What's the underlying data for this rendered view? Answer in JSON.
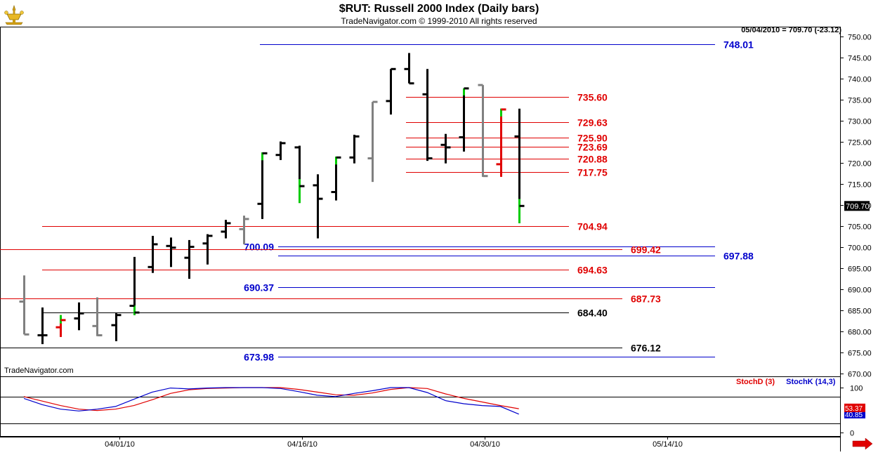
{
  "header": {
    "title": "$RUT:  Russell 2000 Index  (Daily bars)",
    "subtitle": "TradeNavigator.com © 1999-2010 All rights reserved",
    "quote": "05/04/2010 = 709.70 (-23.12)",
    "watermark": "TradeNavigator.com"
  },
  "chart_data": [
    {
      "type": "ohlc",
      "price_axis": {
        "range": [
          668,
          753
        ],
        "ticks": [
          "750.00",
          "745.00",
          "740.00",
          "735.00",
          "730.00",
          "725.00",
          "720.00",
          "715.00",
          "710.00",
          "705.00",
          "700.00",
          "695.00",
          "690.00",
          "685.00",
          "680.00",
          "675.00",
          "670.00"
        ],
        "last_price_label": "709.70"
      },
      "x_labels": [
        "04/01/10",
        "04/16/10",
        "04/30/10",
        "05/14/10"
      ],
      "bars": [
        {
          "h": 693.2,
          "l": 679.2,
          "o": 687.0,
          "c": 679.2,
          "color": "#808080"
        },
        {
          "h": 685.6,
          "l": 676.9,
          "o": 679.0,
          "c": 679.0,
          "color": "#000000"
        },
        {
          "h": 683.8,
          "l": 678.6,
          "o": 680.9,
          "c": 682.6,
          "color": "#e00000",
          "tick_color": "#00cc00"
        },
        {
          "h": 686.8,
          "l": 680.2,
          "o": 683.0,
          "c": 684.2,
          "color": "#000000"
        },
        {
          "h": 688.0,
          "l": 678.8,
          "o": 681.2,
          "c": 679.0,
          "color": "#808080"
        },
        {
          "h": 684.4,
          "l": 677.6,
          "o": 681.4,
          "c": 683.8,
          "color": "#000000"
        },
        {
          "h": 697.6,
          "l": 683.8,
          "o": 686.0,
          "c": 684.4,
          "color": "#000000",
          "tick_color": "#00cc00"
        },
        {
          "h": 702.6,
          "l": 693.8,
          "o": 695.2,
          "c": 700.6,
          "color": "#000000"
        },
        {
          "h": 702.2,
          "l": 695.2,
          "o": 700.2,
          "c": 699.8,
          "color": "#000000"
        },
        {
          "h": 701.6,
          "l": 692.4,
          "o": 697.4,
          "c": 700.0,
          "color": "#000000"
        },
        {
          "h": 703.0,
          "l": 695.8,
          "o": 700.8,
          "c": 702.6,
          "color": "#000000"
        },
        {
          "h": 706.4,
          "l": 702.0,
          "o": 703.6,
          "c": 705.6,
          "color": "#000000"
        },
        {
          "h": 707.4,
          "l": 700.6,
          "o": 704.2,
          "c": 706.6,
          "color": "#808080"
        },
        {
          "h": 722.4,
          "l": 706.6,
          "o": 710.2,
          "c": 722.2,
          "color": "#000000",
          "tick_color": "#00cc00"
        },
        {
          "h": 725.0,
          "l": 720.6,
          "o": 721.8,
          "c": 724.6,
          "color": "#000000"
        },
        {
          "h": 724.0,
          "l": 710.4,
          "o": 723.6,
          "c": 714.4,
          "color": "#000000",
          "tick_color": "#00cc00"
        },
        {
          "h": 717.2,
          "l": 702.0,
          "o": 714.6,
          "c": 711.4,
          "color": "#000000"
        },
        {
          "h": 721.4,
          "l": 711.0,
          "o": 713.0,
          "c": 721.2,
          "color": "#000000",
          "tick_color": "#00cc00"
        },
        {
          "h": 726.6,
          "l": 719.8,
          "o": 721.2,
          "c": 726.2,
          "color": "#000000"
        },
        {
          "h": 734.4,
          "l": 715.4,
          "o": 721.0,
          "c": 734.4,
          "color": "#808080"
        },
        {
          "h": 742.2,
          "l": 731.4,
          "o": 734.6,
          "c": 742.2,
          "color": "#000000"
        },
        {
          "h": 746.0,
          "l": 738.8,
          "o": 742.2,
          "c": 738.8,
          "color": "#000000"
        },
        {
          "h": 742.2,
          "l": 720.4,
          "o": 736.2,
          "c": 721.0,
          "color": "#000000"
        },
        {
          "h": 726.8,
          "l": 719.8,
          "o": 724.2,
          "c": 723.6,
          "color": "#000000"
        },
        {
          "h": 737.6,
          "l": 722.6,
          "o": 726.0,
          "c": 737.6,
          "color": "#000000",
          "tick_color": "#00cc00"
        },
        {
          "h": 738.4,
          "l": 716.6,
          "o": 738.4,
          "c": 716.8,
          "color": "#808080"
        },
        {
          "h": 732.8,
          "l": 716.6,
          "o": 719.6,
          "c": 732.6,
          "color": "#e00000",
          "tick_color": "#00cc00"
        },
        {
          "h": 732.8,
          "l": 705.6,
          "o": 726.2,
          "c": 709.7,
          "color": "#000000",
          "tick_color": "#00cc00"
        }
      ],
      "levels": [
        {
          "value": 748.01,
          "label": "748.01",
          "color": "#0000cc"
        },
        {
          "value": 735.6,
          "label": "735.60",
          "color": "#e00000"
        },
        {
          "value": 729.63,
          "label": "729.63",
          "color": "#e00000"
        },
        {
          "value": 725.9,
          "label": "725.90",
          "color": "#e00000"
        },
        {
          "value": 723.69,
          "label": "723.69",
          "color": "#e00000"
        },
        {
          "value": 720.88,
          "label": "720.88",
          "color": "#e00000"
        },
        {
          "value": 717.75,
          "label": "717.75",
          "color": "#e00000"
        },
        {
          "value": 704.94,
          "label": "704.94",
          "color": "#e00000"
        },
        {
          "value": 700.09,
          "label": "700.09",
          "color": "#0000cc"
        },
        {
          "value": 699.42,
          "label": "699.42",
          "color": "#e00000"
        },
        {
          "value": 697.88,
          "label": "697.88",
          "color": "#0000cc"
        },
        {
          "value": 694.63,
          "label": "694.63",
          "color": "#e00000"
        },
        {
          "value": 690.37,
          "label": "690.37",
          "color": "#0000cc"
        },
        {
          "value": 687.73,
          "label": "687.73",
          "color": "#e00000"
        },
        {
          "value": 684.4,
          "label": "684.40",
          "color": "#000000"
        },
        {
          "value": 676.12,
          "label": "676.12",
          "color": "#000000"
        },
        {
          "value": 673.98,
          "label": "673.98",
          "color": "#0000cc"
        }
      ]
    },
    {
      "type": "line",
      "legend": [
        "StochD (3)",
        "StochK (14,3)"
      ],
      "axis": {
        "range": [
          0,
          100
        ],
        "ticks": [
          "100",
          "0"
        ]
      },
      "last_values": {
        "stochd": "53.37",
        "stochk": "40.85"
      },
      "series": [
        {
          "name": "StochD (3)",
          "color": "#e00000",
          "values": [
            80,
            70,
            60,
            52,
            49,
            52,
            60,
            73,
            87,
            95,
            98,
            99,
            100,
            100,
            100,
            96,
            90,
            84,
            83,
            88,
            96,
            100,
            98,
            86,
            76,
            68,
            60,
            53
          ]
        },
        {
          "name": "StochK (14,3)",
          "color": "#0000cc",
          "values": [
            76,
            62,
            52,
            48,
            52,
            58,
            74,
            90,
            99,
            97,
            99,
            100,
            100,
            100,
            98,
            91,
            83,
            80,
            87,
            93,
            100,
            100,
            89,
            71,
            64,
            60,
            58,
            41
          ]
        }
      ]
    }
  ]
}
